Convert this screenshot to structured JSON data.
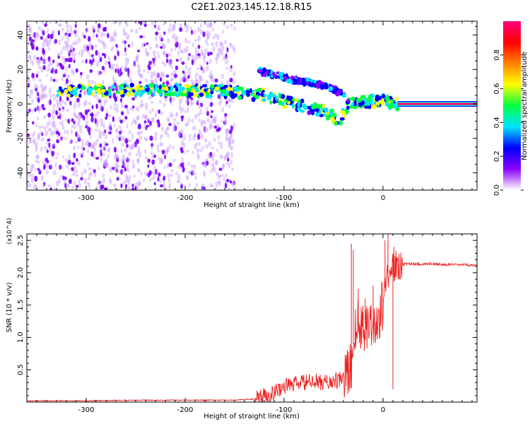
{
  "chart_data": [
    {
      "type": "heatmap",
      "title": "C2E1.2023.145.12.18.R15",
      "xlabel": "Height of straight line (km)",
      "ylabel": "Frequency (Hz)",
      "xlim": [
        -360,
        95
      ],
      "ylim": [
        -50,
        48
      ],
      "x_ticks": [
        -300,
        -200,
        -100,
        0
      ],
      "y_ticks": [
        -40,
        -20,
        0,
        20,
        40
      ],
      "colorbar": {
        "label": "Normalized spectral amplitude",
        "range": [
          0,
          1
        ],
        "ticks": [
          "0.0",
          "0.2",
          "0.4",
          "0.6",
          "0.8"
        ],
        "colors": [
          "#ffffff",
          "#8a00ff",
          "#0000ff",
          "#00e5ff",
          "#00ff40",
          "#ffff00",
          "#ff8000",
          "#ff0000",
          "#ff0080"
        ]
      },
      "features": [
        {
          "name": "main-band",
          "x": [
            -330,
            -280,
            -200,
            -150,
            -120,
            -90,
            -60,
            -45,
            -35,
            -20,
            0,
            15
          ],
          "y": [
            8,
            8,
            8,
            7,
            5,
            0,
            -4,
            -10,
            0,
            1,
            2,
            0
          ],
          "amplitude": 0.4
        },
        {
          "name": "upper-branch",
          "x": [
            -125,
            -110,
            -90,
            -70,
            -55,
            -45,
            -35
          ],
          "y": [
            19,
            17,
            14,
            12,
            10,
            7,
            2
          ],
          "amplitude": 0.2
        },
        {
          "name": "carrier-line",
          "x": [
            15,
            95
          ],
          "y": [
            0,
            0
          ],
          "amplitude": 0.95
        }
      ],
      "grid": false
    },
    {
      "type": "line",
      "title": "",
      "xlabel": "Height of straight line (km)",
      "ylabel": "SNR (10 * v/v)",
      "y_multiplier": "(x10^4)",
      "xlim": [
        -360,
        95
      ],
      "ylim": [
        0,
        2.6
      ],
      "x_ticks": [
        -300,
        -200,
        -100,
        0
      ],
      "y_ticks": [
        "0.5",
        "1.0",
        "1.5",
        "2.0",
        "2.5"
      ],
      "color": "#ee2020",
      "series": [
        {
          "x": [
            -360,
            -300,
            -250,
            -200,
            -150,
            -130,
            -110,
            -100,
            -90,
            -80,
            -70,
            -60,
            -50,
            -45,
            -40,
            -35,
            -32,
            -30,
            -28,
            -25,
            -20,
            -15,
            -10,
            -8,
            -5,
            -3,
            0,
            3,
            5,
            10,
            15,
            20,
            30,
            40,
            50,
            60,
            70,
            80,
            95
          ],
          "y": [
            0.02,
            0.02,
            0.03,
            0.03,
            0.03,
            0.05,
            0.15,
            0.25,
            0.28,
            0.3,
            0.32,
            0.3,
            0.32,
            0.33,
            0.38,
            0.45,
            0.6,
            0.9,
            1.1,
            1.2,
            1.2,
            1.25,
            1.2,
            1.2,
            1.3,
            1.35,
            1.5,
            1.9,
            2.0,
            2.1,
            2.1,
            2.13,
            2.14,
            2.13,
            2.14,
            2.13,
            2.12,
            2.12,
            2.12
          ]
        }
      ],
      "spikes": [
        {
          "x": -30,
          "y": 2.35
        },
        {
          "x": -32,
          "y": 2.45
        },
        {
          "x": -25,
          "y": 1.75
        },
        {
          "x": -18,
          "y": 1.6
        },
        {
          "x": -10,
          "y": 1.8
        },
        {
          "x": 2,
          "y": 2.5
        },
        {
          "x": 5,
          "y": 2.6
        },
        {
          "x": 11,
          "y": 2.4
        }
      ],
      "dips": [
        {
          "x": 10,
          "y": 0.2
        }
      ],
      "grid": false
    }
  ]
}
